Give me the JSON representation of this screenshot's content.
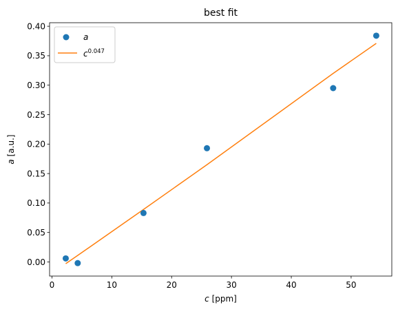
{
  "chart_data": {
    "type": "scatter",
    "title": "best fit",
    "xlabel_var": "c",
    "xlabel_unit": " [ppm]",
    "ylabel_var": "a",
    "ylabel_unit": " [a.u.]",
    "xlim": [
      -0.4,
      56.8
    ],
    "ylim": [
      -0.024,
      0.406
    ],
    "xticks": [
      0,
      10,
      20,
      30,
      40,
      50
    ],
    "xtick_labels": [
      "0",
      "10",
      "20",
      "30",
      "40",
      "50"
    ],
    "yticks": [
      0.0,
      0.05,
      0.1,
      0.15,
      0.2,
      0.25,
      0.3,
      0.35,
      0.4
    ],
    "ytick_labels": [
      "0.00",
      "0.05",
      "0.10",
      "0.15",
      "0.20",
      "0.25",
      "0.30",
      "0.35",
      "0.40"
    ],
    "grid": false,
    "legend": "top-left",
    "series": [
      {
        "name": "a",
        "kind": "scatter",
        "color": "#1f77b4",
        "x": [
          2.3,
          4.3,
          15.3,
          25.9,
          47.0,
          54.2
        ],
        "y": [
          0.006,
          -0.002,
          0.083,
          0.193,
          0.295,
          0.384
        ]
      },
      {
        "name_base": "c",
        "name_exp": "0.047",
        "kind": "line",
        "color": "#ff7f0e",
        "x": [
          2.3,
          4.3,
          15.3,
          25.9,
          47.0,
          54.2
        ],
        "y": [
          -0.003,
          0.011,
          0.089,
          0.165,
          0.32,
          0.371
        ]
      }
    ]
  }
}
